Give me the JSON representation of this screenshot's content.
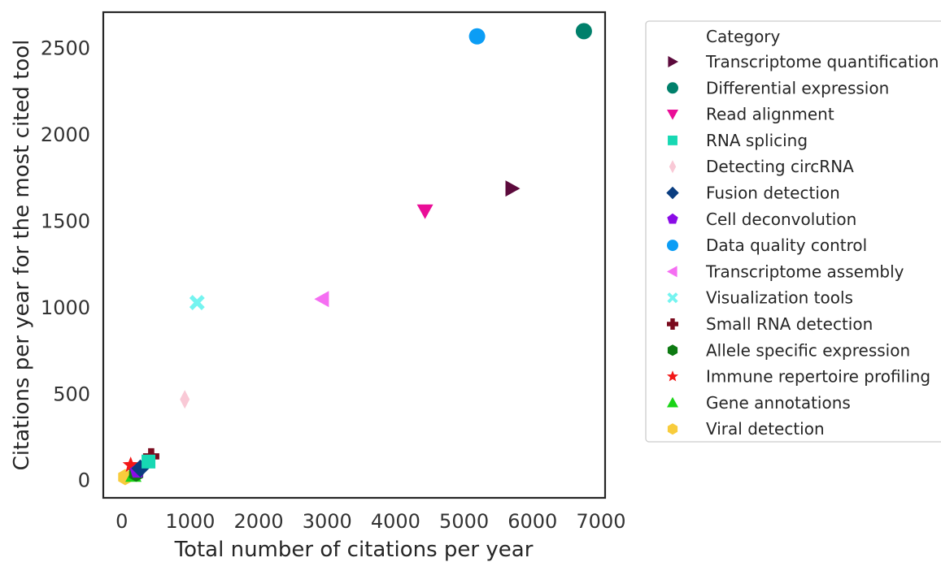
{
  "chart_data": {
    "type": "scatter",
    "xlabel": "Total number of citations per year",
    "ylabel": "Citations per year for the most cited tool",
    "xlim": [
      -270,
      7060
    ],
    "ylim": [
      -100,
      2710
    ],
    "xticks": [
      0,
      1000,
      2000,
      3000,
      4000,
      5000,
      6000,
      7000
    ],
    "yticks": [
      0,
      500,
      1000,
      1500,
      2000,
      2500
    ],
    "grid": false,
    "legend": {
      "title": "Category",
      "position": "right-outside"
    },
    "series": [
      {
        "name": "Transcriptome quantification",
        "marker": "triangle-right",
        "color": "#5c0a3c",
        "points": [
          [
            5700,
            1690
          ]
        ]
      },
      {
        "name": "Differential expression",
        "marker": "circle",
        "color": "#00806b",
        "points": [
          [
            6750,
            2600
          ]
        ]
      },
      {
        "name": "Read alignment",
        "marker": "triangle-down",
        "color": "#ea0d97",
        "points": [
          [
            4430,
            1560
          ]
        ]
      },
      {
        "name": "RNA splicing",
        "marker": "square",
        "color": "#17d8b3",
        "points": [
          [
            390,
            110
          ]
        ]
      },
      {
        "name": "Detecting circRNA",
        "marker": "diamond-thin",
        "color": "#f9c9d6",
        "points": [
          [
            920,
            470
          ]
        ]
      },
      {
        "name": "Fusion detection",
        "marker": "diamond",
        "color": "#0a3d80",
        "points": [
          [
            270,
            70
          ]
        ]
      },
      {
        "name": "Cell deconvolution",
        "marker": "pentagon",
        "color": "#8a0be6",
        "points": [
          [
            230,
            55
          ]
        ]
      },
      {
        "name": "Data quality control",
        "marker": "circle",
        "color": "#0b9df5",
        "points": [
          [
            5190,
            2570
          ]
        ]
      },
      {
        "name": "Transcriptome assembly",
        "marker": "triangle-left",
        "color": "#f56ef2",
        "points": [
          [
            2930,
            1050
          ]
        ]
      },
      {
        "name": "Visualization tools",
        "marker": "x",
        "color": "#74f4f0",
        "points": [
          [
            1100,
            1030
          ]
        ]
      },
      {
        "name": "Small RNA detection",
        "marker": "plus",
        "color": "#7a0b1e",
        "points": [
          [
            430,
            140
          ]
        ]
      },
      {
        "name": "Allele specific expression",
        "marker": "hexagon",
        "color": "#0d7a12",
        "points": [
          [
            210,
            40
          ]
        ]
      },
      {
        "name": "Immune repertoire profiling",
        "marker": "star",
        "color": "#f21818",
        "points": [
          [
            130,
            90
          ]
        ]
      },
      {
        "name": "Gene annotations",
        "marker": "triangle-up",
        "color": "#1ad417",
        "points": [
          [
            170,
            30
          ]
        ]
      },
      {
        "name": "Viral detection",
        "marker": "hexagon",
        "color": "#f8cc3c",
        "points": [
          [
            50,
            20
          ]
        ]
      }
    ]
  }
}
